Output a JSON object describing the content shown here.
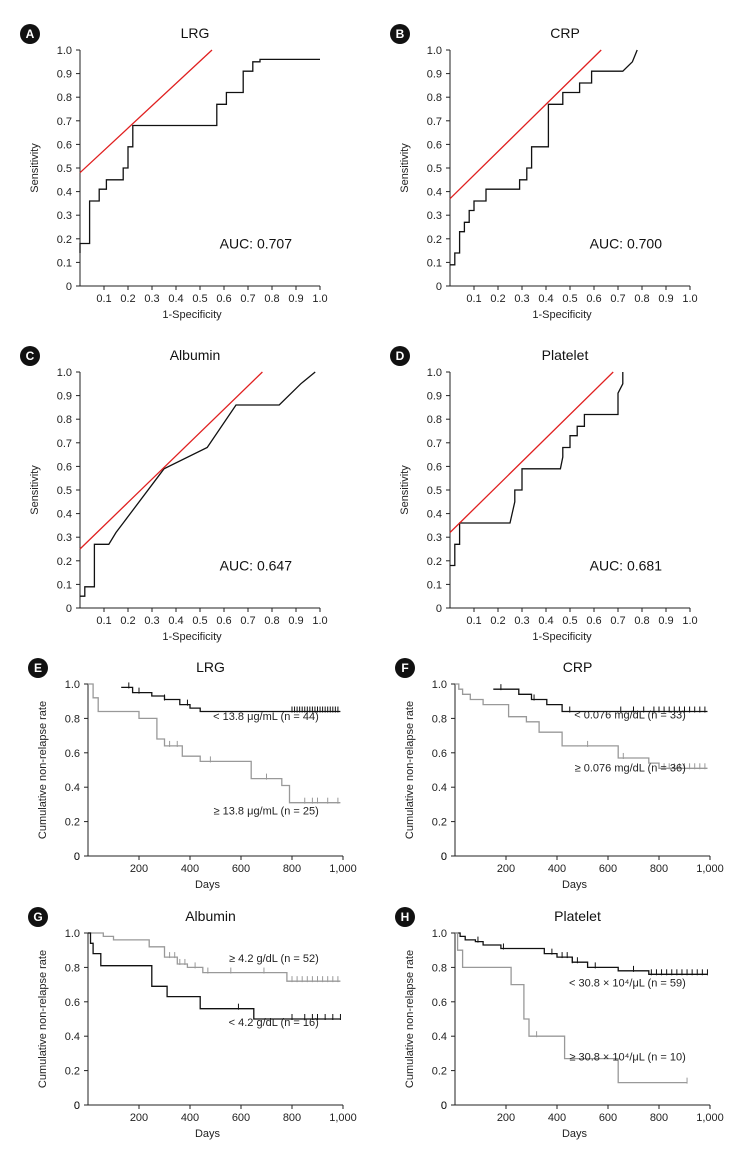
{
  "chart_data": [
    {
      "id": "A",
      "type": "line",
      "title": "LRG",
      "xlabel": "1-Specificity",
      "ylabel": "Sensitivity",
      "xlim": [
        0,
        1
      ],
      "ylim": [
        0,
        1
      ],
      "xticks": [
        "0.1",
        "0.2",
        "0.3",
        "0.4",
        "0.5",
        "0.6",
        "0.7",
        "0.8",
        "0.9",
        "1.0"
      ],
      "yticks": [
        "0",
        "0.1",
        "0.2",
        "0.3",
        "0.4",
        "0.5",
        "0.6",
        "0.7",
        "0.8",
        "0.9",
        "1.0"
      ],
      "annotation": "AUC: 0.707",
      "series": [
        {
          "name": "ROC",
          "color": "#111111",
          "x": [
            0,
            0,
            0.04,
            0.04,
            0.08,
            0.08,
            0.11,
            0.11,
            0.18,
            0.18,
            0.2,
            0.2,
            0.22,
            0.22,
            0.57,
            0.57,
            0.61,
            0.61,
            0.68,
            0.68,
            0.72,
            0.72,
            0.75,
            0.75,
            1.0
          ],
          "y": [
            0.14,
            0.18,
            0.18,
            0.36,
            0.36,
            0.41,
            0.41,
            0.45,
            0.45,
            0.5,
            0.5,
            0.59,
            0.59,
            0.68,
            0.68,
            0.77,
            0.77,
            0.82,
            0.82,
            0.91,
            0.91,
            0.95,
            0.95,
            0.96,
            0.96
          ]
        },
        {
          "name": "Reference",
          "color": "#e02020",
          "x": [
            0,
            0.55
          ],
          "y": [
            0.48,
            1.0
          ]
        }
      ]
    },
    {
      "id": "B",
      "type": "line",
      "title": "CRP",
      "xlabel": "1-Specificity",
      "ylabel": "Sensitivity",
      "xlim": [
        0,
        1
      ],
      "ylim": [
        0,
        1
      ],
      "xticks": [
        "0.1",
        "0.2",
        "0.3",
        "0.4",
        "0.5",
        "0.6",
        "0.7",
        "0.8",
        "0.9",
        "1.0"
      ],
      "yticks": [
        "0",
        "0.1",
        "0.2",
        "0.3",
        "0.4",
        "0.5",
        "0.6",
        "0.7",
        "0.8",
        "0.9",
        "1.0"
      ],
      "annotation": "AUC: 0.700",
      "series": [
        {
          "name": "ROC",
          "color": "#111111",
          "x": [
            0,
            0.02,
            0.02,
            0.04,
            0.04,
            0.06,
            0.06,
            0.08,
            0.08,
            0.1,
            0.1,
            0.15,
            0.15,
            0.29,
            0.29,
            0.32,
            0.32,
            0.34,
            0.34,
            0.41,
            0.41,
            0.47,
            0.47,
            0.54,
            0.54,
            0.59,
            0.59,
            0.72,
            0.76,
            0.78
          ],
          "y": [
            0.09,
            0.09,
            0.14,
            0.14,
            0.23,
            0.23,
            0.27,
            0.27,
            0.32,
            0.32,
            0.36,
            0.36,
            0.41,
            0.41,
            0.45,
            0.45,
            0.5,
            0.5,
            0.59,
            0.59,
            0.77,
            0.77,
            0.82,
            0.82,
            0.86,
            0.86,
            0.91,
            0.91,
            0.95,
            1.0
          ]
        },
        {
          "name": "Reference",
          "color": "#e02020",
          "x": [
            0,
            0.63
          ],
          "y": [
            0.37,
            1.0
          ]
        }
      ]
    },
    {
      "id": "C",
      "type": "line",
      "title": "Albumin",
      "xlabel": "1-Specificity",
      "ylabel": "Sensitivity",
      "xlim": [
        0,
        1
      ],
      "ylim": [
        0,
        1
      ],
      "xticks": [
        "0.1",
        "0.2",
        "0.3",
        "0.4",
        "0.5",
        "0.6",
        "0.7",
        "0.8",
        "0.9",
        "1.0"
      ],
      "yticks": [
        "0",
        "0.1",
        "0.2",
        "0.3",
        "0.4",
        "0.5",
        "0.6",
        "0.7",
        "0.8",
        "0.9",
        "1.0"
      ],
      "annotation": "AUC: 0.647",
      "series": [
        {
          "name": "ROC",
          "color": "#111111",
          "x": [
            0,
            0.02,
            0.02,
            0.06,
            0.06,
            0.12,
            0.15,
            0.18,
            0.35,
            0.53,
            0.65,
            0.83,
            0.92,
            0.98
          ],
          "y": [
            0.05,
            0.05,
            0.09,
            0.09,
            0.27,
            0.27,
            0.32,
            0.36,
            0.59,
            0.68,
            0.86,
            0.86,
            0.95,
            1.0
          ]
        },
        {
          "name": "Reference",
          "color": "#e02020",
          "x": [
            0,
            0.76
          ],
          "y": [
            0.25,
            1.0
          ]
        }
      ]
    },
    {
      "id": "D",
      "type": "line",
      "title": "Platelet",
      "xlabel": "1-Specificity",
      "ylabel": "Sensitivity",
      "xlim": [
        0,
        1
      ],
      "ylim": [
        0,
        1
      ],
      "xticks": [
        "0.1",
        "0.2",
        "0.3",
        "0.4",
        "0.5",
        "0.6",
        "0.7",
        "0.8",
        "0.9",
        "1.0"
      ],
      "yticks": [
        "0",
        "0.1",
        "0.2",
        "0.3",
        "0.4",
        "0.5",
        "0.6",
        "0.7",
        "0.8",
        "0.9",
        "1.0"
      ],
      "annotation": "AUC: 0.681",
      "series": [
        {
          "name": "ROC",
          "color": "#111111",
          "x": [
            0,
            0.02,
            0.02,
            0.04,
            0.04,
            0.25,
            0.27,
            0.27,
            0.3,
            0.3,
            0.33,
            0.33,
            0.46,
            0.47,
            0.47,
            0.5,
            0.5,
            0.53,
            0.53,
            0.56,
            0.56,
            0.59,
            0.59,
            0.7,
            0.7,
            0.72,
            0.72
          ],
          "y": [
            0.18,
            0.18,
            0.27,
            0.27,
            0.36,
            0.36,
            0.45,
            0.5,
            0.5,
            0.59,
            0.59,
            0.59,
            0.59,
            0.64,
            0.68,
            0.68,
            0.73,
            0.73,
            0.77,
            0.77,
            0.82,
            0.82,
            0.82,
            0.82,
            0.91,
            0.95,
            1.0
          ]
        },
        {
          "name": "Reference",
          "color": "#e02020",
          "x": [
            0,
            0.68
          ],
          "y": [
            0.32,
            1.0
          ]
        }
      ]
    },
    {
      "id": "E",
      "type": "line",
      "title": "LRG",
      "xlabel": "Days",
      "ylabel": "Cumulative non-relapse rate",
      "xlim": [
        0,
        1000
      ],
      "ylim": [
        0,
        1
      ],
      "xticks": [
        "200",
        "400",
        "600",
        "800",
        "1,000"
      ],
      "yticks": [
        "0",
        "0.2",
        "0.4",
        "0.6",
        "0.8",
        "1.0"
      ],
      "series": [
        {
          "name": "< 13.8 μg/mL (n = 44)",
          "color": "#111111",
          "x": [
            130,
            175,
            175,
            250,
            250,
            300,
            300,
            360,
            360,
            400,
            400,
            440,
            440,
            990
          ],
          "y": [
            0.98,
            0.98,
            0.95,
            0.95,
            0.93,
            0.93,
            0.91,
            0.91,
            0.88,
            0.88,
            0.86,
            0.86,
            0.84,
            0.84
          ],
          "censor": [
            160,
            200,
            300,
            390,
            800,
            810,
            820,
            830,
            840,
            850,
            860,
            870,
            880,
            890,
            900,
            910,
            920,
            930,
            940,
            950,
            960,
            970,
            980
          ]
        },
        {
          "name": "≥ 13.8 μg/mL (n = 25)",
          "color": "#999999",
          "x": [
            0,
            20,
            20,
            40,
            40,
            200,
            200,
            270,
            270,
            300,
            300,
            370,
            370,
            440,
            440,
            640,
            640,
            760,
            760,
            790,
            790,
            990
          ],
          "y": [
            1.0,
            1.0,
            0.92,
            0.92,
            0.84,
            0.84,
            0.8,
            0.8,
            0.68,
            0.68,
            0.64,
            0.64,
            0.58,
            0.58,
            0.55,
            0.55,
            0.45,
            0.45,
            0.41,
            0.41,
            0.31,
            0.31
          ],
          "censor": [
            320,
            350,
            480,
            700,
            850,
            880,
            900,
            940,
            980
          ]
        }
      ],
      "labels": [
        "< 13.8 μg/mL (n = 44)",
        "≥ 13.8 μg/mL (n = 25)"
      ]
    },
    {
      "id": "F",
      "type": "line",
      "title": "CRP",
      "xlabel": "Days",
      "ylabel": "Cumulative non-relapse rate",
      "xlim": [
        0,
        1000
      ],
      "ylim": [
        0,
        1
      ],
      "xticks": [
        "200",
        "400",
        "600",
        "800",
        "1,000"
      ],
      "yticks": [
        "0",
        "0.2",
        "0.4",
        "0.6",
        "0.8",
        "1.0"
      ],
      "series": [
        {
          "name": "< 0.076 mg/dL (n = 33)",
          "color": "#111111",
          "x": [
            150,
            250,
            250,
            300,
            300,
            360,
            360,
            420,
            420,
            990
          ],
          "y": [
            0.97,
            0.97,
            0.94,
            0.94,
            0.91,
            0.91,
            0.88,
            0.88,
            0.84,
            0.84
          ],
          "censor": [
            180,
            310,
            450,
            650,
            700,
            740,
            780,
            800,
            820,
            840,
            860,
            880,
            900,
            920,
            940,
            960,
            980
          ]
        },
        {
          "name": "≥ 0.076 mg/dL (n = 36)",
          "color": "#999999",
          "x": [
            0,
            15,
            15,
            30,
            30,
            60,
            60,
            110,
            110,
            210,
            210,
            280,
            280,
            330,
            330,
            420,
            420,
            640,
            640,
            760,
            760,
            800,
            800,
            990
          ],
          "y": [
            1.0,
            1.0,
            0.97,
            0.97,
            0.94,
            0.94,
            0.91,
            0.91,
            0.88,
            0.88,
            0.81,
            0.81,
            0.78,
            0.78,
            0.72,
            0.72,
            0.64,
            0.64,
            0.57,
            0.57,
            0.54,
            0.54,
            0.51,
            0.51
          ],
          "censor": [
            520,
            660,
            820,
            840,
            860,
            880,
            900,
            920,
            940,
            960,
            980
          ]
        }
      ],
      "labels": [
        "< 0.076 mg/dL (n = 33)",
        "≥ 0.076 mg/dL (n = 36)"
      ]
    },
    {
      "id": "G",
      "type": "line",
      "title": "Albumin",
      "xlabel": "Days",
      "ylabel": "Cumulative non-relapse rate",
      "xlim": [
        0,
        1000
      ],
      "ylim": [
        0,
        1
      ],
      "xticks": [
        "200",
        "400",
        "600",
        "800",
        "1,000"
      ],
      "yticks": [
        "0",
        "0.2",
        "0.4",
        "0.6",
        "0.8",
        "1.0"
      ],
      "series": [
        {
          "name": "≥ 4.2 g/dL (n = 52)",
          "color": "#999999",
          "x": [
            0,
            60,
            60,
            100,
            100,
            240,
            240,
            300,
            300,
            350,
            350,
            390,
            390,
            450,
            450,
            780,
            780,
            990
          ],
          "y": [
            1.0,
            1.0,
            0.98,
            0.98,
            0.96,
            0.96,
            0.92,
            0.92,
            0.86,
            0.86,
            0.82,
            0.82,
            0.8,
            0.8,
            0.77,
            0.77,
            0.72,
            0.72
          ],
          "censor": [
            320,
            340,
            360,
            380,
            420,
            470,
            560,
            690,
            800,
            820,
            840,
            860,
            880,
            900,
            920,
            940,
            960,
            980
          ]
        },
        {
          "name": "< 4.2 g/dL (n = 16)",
          "color": "#111111",
          "x": [
            0,
            10,
            10,
            20,
            20,
            50,
            50,
            250,
            250,
            310,
            310,
            440,
            440,
            650,
            650,
            990
          ],
          "y": [
            1.0,
            1.0,
            0.94,
            0.94,
            0.88,
            0.88,
            0.81,
            0.81,
            0.69,
            0.69,
            0.63,
            0.63,
            0.56,
            0.56,
            0.5,
            0.5
          ],
          "censor": [
            590,
            800,
            850,
            880,
            900,
            930,
            960,
            990
          ]
        }
      ],
      "labels": [
        "≥ 4.2 g/dL (n = 52)",
        "< 4.2 g/dL (n = 16)"
      ]
    },
    {
      "id": "H",
      "type": "line",
      "title": "Platelet",
      "xlabel": "Days",
      "ylabel": "Cumulative non-relapse rate",
      "xlim": [
        0,
        1000
      ],
      "ylim": [
        0,
        1
      ],
      "xticks": [
        "200",
        "400",
        "600",
        "800",
        "1,000"
      ],
      "yticks": [
        "0",
        "0.2",
        "0.4",
        "0.6",
        "0.8",
        "1.0"
      ],
      "series": [
        {
          "name": "< 30.8 × 10⁴/μL (n = 59)",
          "color": "#111111",
          "x": [
            0,
            20,
            20,
            40,
            40,
            80,
            80,
            110,
            110,
            180,
            180,
            350,
            350,
            400,
            400,
            460,
            460,
            520,
            520,
            640,
            640,
            760,
            760,
            990
          ],
          "y": [
            1.0,
            1.0,
            0.98,
            0.98,
            0.96,
            0.96,
            0.95,
            0.95,
            0.93,
            0.93,
            0.91,
            0.91,
            0.88,
            0.88,
            0.86,
            0.86,
            0.83,
            0.83,
            0.8,
            0.8,
            0.78,
            0.78,
            0.76,
            0.76
          ],
          "censor": [
            90,
            190,
            380,
            420,
            440,
            460,
            480,
            550,
            700,
            770,
            790,
            810,
            830,
            850,
            870,
            890,
            910,
            930,
            950,
            970,
            990
          ]
        },
        {
          "name": "≥ 30.8 × 10⁴/μL (n = 10)",
          "color": "#999999",
          "x": [
            0,
            10,
            10,
            30,
            30,
            220,
            220,
            270,
            270,
            290,
            290,
            430,
            430,
            640,
            640,
            910
          ],
          "y": [
            1.0,
            1.0,
            0.9,
            0.9,
            0.8,
            0.8,
            0.7,
            0.7,
            0.5,
            0.5,
            0.4,
            0.4,
            0.27,
            0.27,
            0.13,
            0.13
          ],
          "censor": [
            320,
            910
          ]
        }
      ],
      "labels": [
        "< 30.8 × 10⁴/μL (n = 59)",
        "≥ 30.8 × 10⁴/μL (n = 10)"
      ]
    }
  ]
}
